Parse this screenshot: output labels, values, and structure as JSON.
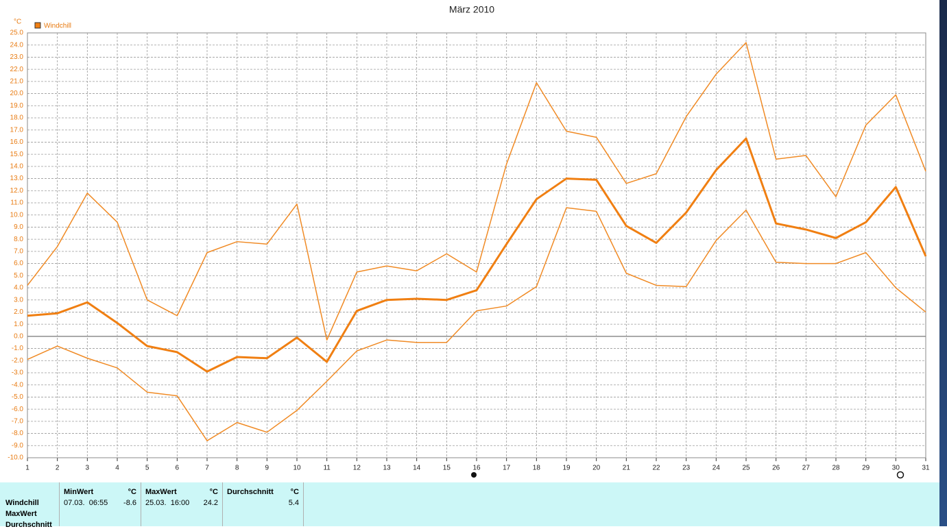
{
  "chart_data": {
    "type": "line",
    "title": "März 2010",
    "y_unit": "°C",
    "legend": "Windchill",
    "legend_color": "#f07f12",
    "x": [
      1,
      2,
      3,
      4,
      5,
      6,
      7,
      8,
      9,
      10,
      11,
      12,
      13,
      14,
      15,
      16,
      17,
      18,
      19,
      20,
      21,
      22,
      23,
      24,
      25,
      26,
      27,
      28,
      29,
      30,
      31
    ],
    "xlim": [
      1,
      31
    ],
    "series": [
      {
        "color": "#f08a24",
        "width": 1.5,
        "values": [
          4.2,
          7.4,
          11.8,
          9.4,
          3.0,
          1.7,
          6.9,
          7.8,
          7.6,
          10.9,
          -0.3,
          5.3,
          5.8,
          5.4,
          6.8,
          5.3,
          14.2,
          20.9,
          16.9,
          16.4,
          12.6,
          13.4,
          18.1,
          21.6,
          24.2,
          14.6,
          14.9,
          11.5,
          17.4,
          19.9,
          13.6
        ]
      },
      {
        "color": "#f07f12",
        "width": 3,
        "values": [
          1.7,
          1.9,
          2.8,
          1.1,
          -0.8,
          -1.3,
          -2.9,
          -1.7,
          -1.8,
          -0.1,
          -2.1,
          2.1,
          3.0,
          3.1,
          3.0,
          3.8,
          7.6,
          11.3,
          13.0,
          12.9,
          9.1,
          7.7,
          10.2,
          13.7,
          16.3,
          9.3,
          8.8,
          8.1,
          9.4,
          12.3,
          6.6
        ]
      },
      {
        "color": "#f08a24",
        "width": 1.5,
        "values": [
          -1.9,
          -0.8,
          -1.8,
          -2.6,
          -4.6,
          -4.9,
          -8.6,
          -7.1,
          -7.9,
          -6.1,
          -3.7,
          -1.2,
          -0.3,
          -0.5,
          -0.5,
          2.1,
          2.5,
          4.1,
          10.6,
          10.3,
          5.2,
          4.2,
          4.1,
          7.9,
          10.4,
          6.1,
          6.0,
          6.0,
          6.9,
          4.0,
          2.0
        ]
      }
    ],
    "ylim": [
      -10,
      25
    ],
    "yticks": [
      {
        "value": -10,
        "label": "-10.0"
      },
      {
        "value": -9,
        "label": "-9.0"
      },
      {
        "value": -8,
        "label": "-8.0"
      },
      {
        "value": -7,
        "label": "-7.0"
      },
      {
        "value": -6,
        "label": "-6.0"
      },
      {
        "value": -5,
        "label": "-5.0"
      },
      {
        "value": -4,
        "label": "-4.0"
      },
      {
        "value": -3,
        "label": "-3.0"
      },
      {
        "value": -2,
        "label": "-2.0"
      },
      {
        "value": -1,
        "label": "-1.0"
      },
      {
        "value": 0,
        "label": "0.0"
      },
      {
        "value": 1,
        "label": "1.0"
      },
      {
        "value": 2,
        "label": "2.0"
      },
      {
        "value": 3,
        "label": "3.0"
      },
      {
        "value": 4,
        "label": "4.0"
      },
      {
        "value": 5,
        "label": "5.0"
      },
      {
        "value": 6,
        "label": "6.0"
      },
      {
        "value": 7,
        "label": "7.0"
      },
      {
        "value": 8,
        "label": "8.0"
      },
      {
        "value": 9,
        "label": "9.0"
      },
      {
        "value": 10,
        "label": "10.0"
      },
      {
        "value": 11,
        "label": "11.0"
      },
      {
        "value": 12,
        "label": "12.0"
      },
      {
        "value": 13,
        "label": "13.0"
      },
      {
        "value": 14,
        "label": "14.0"
      },
      {
        "value": 15,
        "label": "15.0"
      },
      {
        "value": 16,
        "label": "16.0"
      },
      {
        "value": 17,
        "label": "17.0"
      },
      {
        "value": 18,
        "label": "18.0"
      },
      {
        "value": 19,
        "label": "19.0"
      },
      {
        "value": 20,
        "label": "20.0"
      },
      {
        "value": 21,
        "label": "21.0"
      },
      {
        "value": 22,
        "label": "22.0"
      },
      {
        "value": 23,
        "label": "23.0"
      },
      {
        "value": 24,
        "label": "24.0"
      },
      {
        "value": 25,
        "label": "25.0"
      }
    ],
    "grid": true
  },
  "stats_table": {
    "row_labels": [
      "Windchill",
      "MaxWert",
      "Durchschnitt"
    ],
    "columns": [
      {
        "header": "MinWert",
        "unit": "°C",
        "time": "07.03.  06:55",
        "value": "-8.6"
      },
      {
        "header": "MaxWert",
        "unit": "°C",
        "time": "25.03.  16:00",
        "value": "24.2"
      },
      {
        "header": "Durchschnitt",
        "unit": "°C",
        "value": "5.4"
      }
    ]
  }
}
